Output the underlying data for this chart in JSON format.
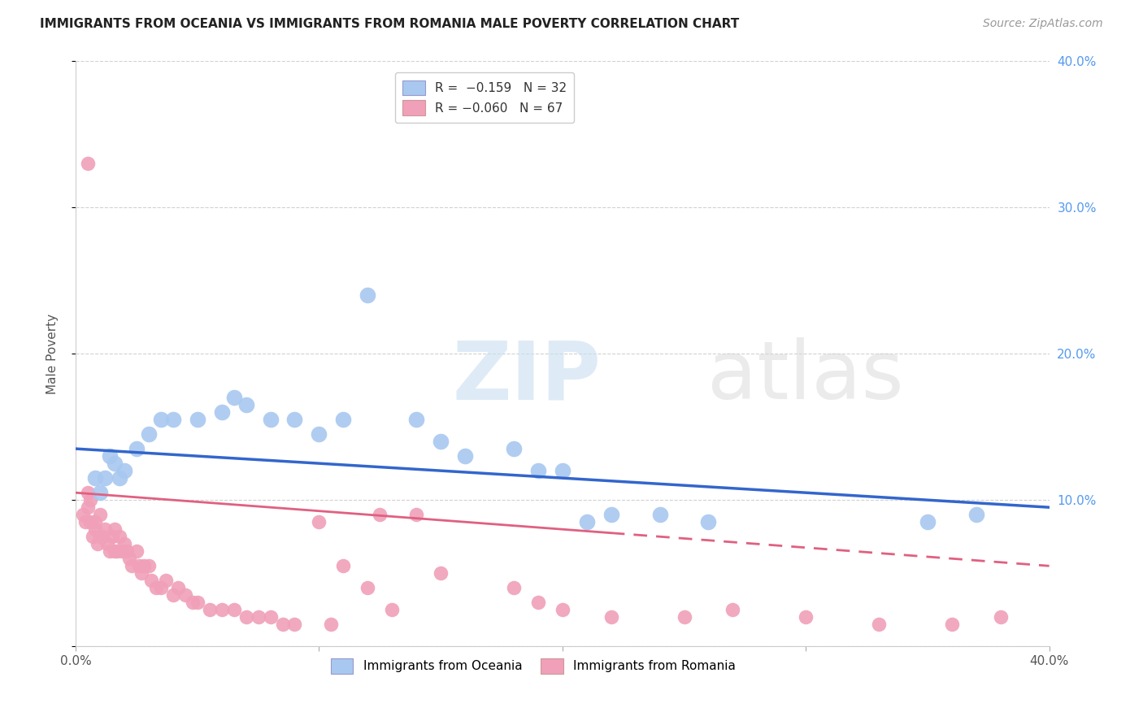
{
  "title": "IMMIGRANTS FROM OCEANIA VS IMMIGRANTS FROM ROMANIA MALE POVERTY CORRELATION CHART",
  "source": "Source: ZipAtlas.com",
  "ylabel": "Male Poverty",
  "xlim": [
    0.0,
    0.4
  ],
  "ylim": [
    0.0,
    0.4
  ],
  "legend_label1": "Immigrants from Oceania",
  "legend_label2": "Immigrants from Romania",
  "oceania_color": "#a8c8f0",
  "romania_color": "#f0a0b8",
  "trendline_oceania_color": "#3366cc",
  "trendline_romania_color": "#e06080",
  "watermark_zip": "ZIP",
  "watermark_atlas": "atlas",
  "background_color": "#ffffff",
  "grid_color": "#cccccc",
  "oceania_x": [
    0.008,
    0.01,
    0.012,
    0.014,
    0.016,
    0.018,
    0.02,
    0.025,
    0.03,
    0.035,
    0.04,
    0.05,
    0.06,
    0.065,
    0.07,
    0.08,
    0.09,
    0.1,
    0.11,
    0.12,
    0.14,
    0.15,
    0.16,
    0.18,
    0.19,
    0.2,
    0.21,
    0.22,
    0.24,
    0.26,
    0.35,
    0.37
  ],
  "oceania_y": [
    0.115,
    0.105,
    0.115,
    0.13,
    0.125,
    0.115,
    0.12,
    0.135,
    0.145,
    0.155,
    0.155,
    0.155,
    0.16,
    0.17,
    0.165,
    0.155,
    0.155,
    0.145,
    0.155,
    0.24,
    0.155,
    0.14,
    0.13,
    0.135,
    0.12,
    0.12,
    0.085,
    0.09,
    0.09,
    0.085,
    0.085,
    0.09
  ],
  "romania_x": [
    0.003,
    0.004,
    0.005,
    0.005,
    0.006,
    0.006,
    0.007,
    0.008,
    0.008,
    0.009,
    0.01,
    0.01,
    0.011,
    0.012,
    0.013,
    0.014,
    0.015,
    0.016,
    0.016,
    0.017,
    0.018,
    0.019,
    0.02,
    0.021,
    0.022,
    0.023,
    0.025,
    0.026,
    0.027,
    0.028,
    0.03,
    0.031,
    0.033,
    0.035,
    0.037,
    0.04,
    0.042,
    0.045,
    0.048,
    0.05,
    0.055,
    0.06,
    0.065,
    0.07,
    0.075,
    0.08,
    0.085,
    0.09,
    0.1,
    0.105,
    0.11,
    0.12,
    0.125,
    0.13,
    0.14,
    0.15,
    0.18,
    0.19,
    0.2,
    0.22,
    0.25,
    0.27,
    0.3,
    0.33,
    0.36,
    0.38,
    0.005
  ],
  "romania_y": [
    0.09,
    0.085,
    0.095,
    0.105,
    0.085,
    0.1,
    0.075,
    0.085,
    0.08,
    0.07,
    0.075,
    0.09,
    0.075,
    0.08,
    0.07,
    0.065,
    0.075,
    0.065,
    0.08,
    0.065,
    0.075,
    0.065,
    0.07,
    0.065,
    0.06,
    0.055,
    0.065,
    0.055,
    0.05,
    0.055,
    0.055,
    0.045,
    0.04,
    0.04,
    0.045,
    0.035,
    0.04,
    0.035,
    0.03,
    0.03,
    0.025,
    0.025,
    0.025,
    0.02,
    0.02,
    0.02,
    0.015,
    0.015,
    0.085,
    0.015,
    0.055,
    0.04,
    0.09,
    0.025,
    0.09,
    0.05,
    0.04,
    0.03,
    0.025,
    0.02,
    0.02,
    0.025,
    0.02,
    0.015,
    0.015,
    0.02,
    0.33
  ],
  "trendline_oceania_x0": 0.0,
  "trendline_oceania_y0": 0.135,
  "trendline_oceania_x1": 0.4,
  "trendline_oceania_y1": 0.095,
  "trendline_romania_x0": 0.0,
  "trendline_romania_y0": 0.105,
  "trendline_romania_x1": 0.4,
  "trendline_romania_y1": 0.055,
  "trendline_romania_dash_start": 0.22
}
